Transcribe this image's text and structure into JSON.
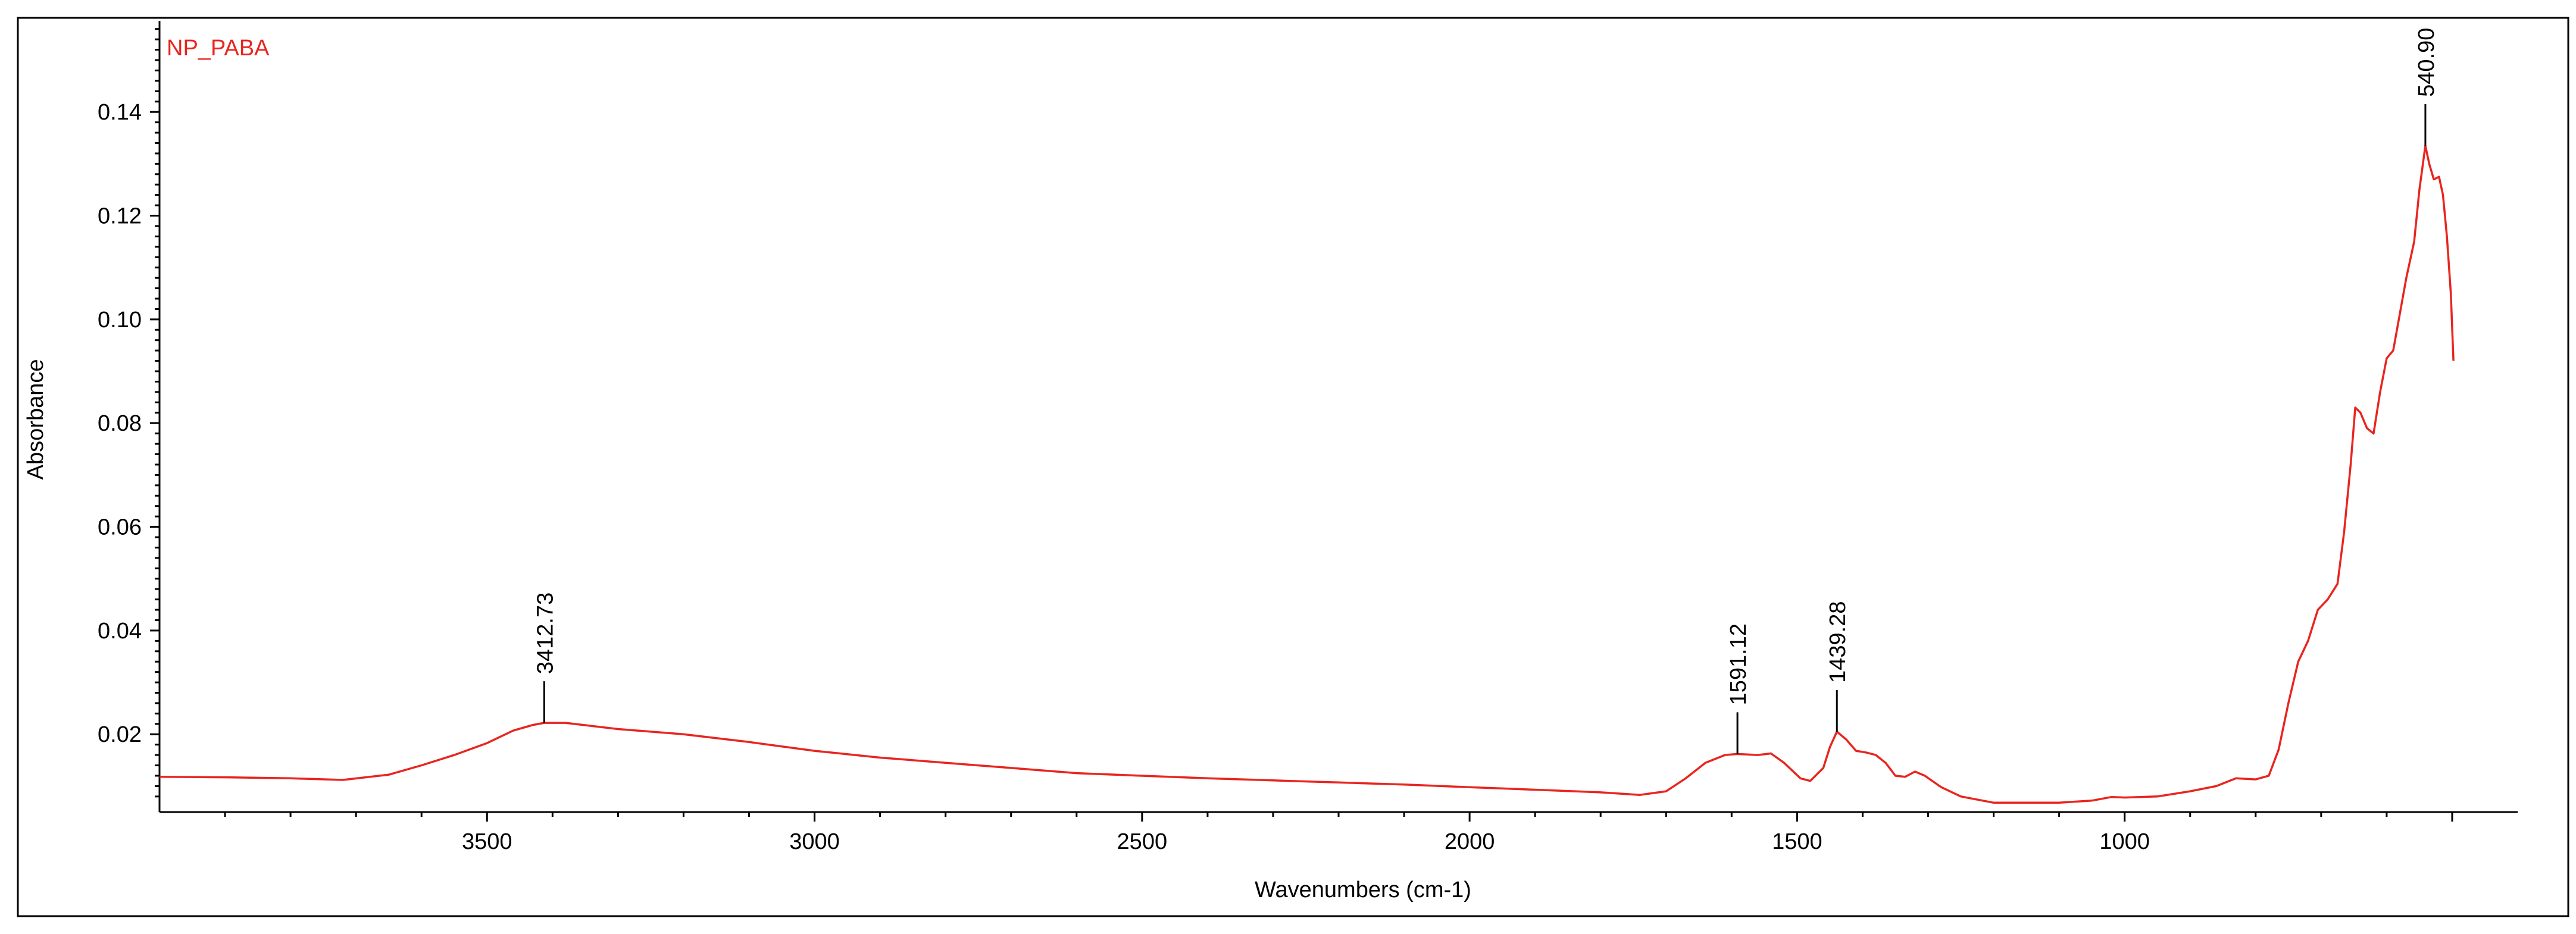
{
  "chart_data": {
    "type": "line",
    "title": "NP_PABA",
    "xlabel": "Wavenumbers (cm-1)",
    "ylabel": "Absorbance",
    "xlim": [
      4000,
      400
    ],
    "x_reversed": true,
    "ylim": [
      0.005,
      0.157
    ],
    "grid": false,
    "legend": "none",
    "x_ticks": [
      3500,
      3000,
      2500,
      2000,
      1500,
      1000
    ],
    "y_ticks": [
      0.02,
      0.04,
      0.06,
      0.08,
      0.1,
      0.12,
      0.14
    ],
    "y_tick_labels": [
      "0.02",
      "0.04",
      "0.06",
      "0.08",
      "0.10",
      "0.12",
      "0.14"
    ],
    "line_color": "#e8251f",
    "peak_annotations": [
      {
        "label": "3412.73",
        "x": 3412.73,
        "y": 0.0222
      },
      {
        "label": "1591.12",
        "x": 1591.12,
        "y": 0.0162
      },
      {
        "label": "1439.28",
        "x": 1439.28,
        "y": 0.0205
      },
      {
        "label": "540.90",
        "x": 540.9,
        "y": 0.1335
      }
    ],
    "series": [
      {
        "values": [
          [
            4000,
            0.0118
          ],
          [
            3900,
            0.0117
          ],
          [
            3800,
            0.0115
          ],
          [
            3720,
            0.0112
          ],
          [
            3650,
            0.0122
          ],
          [
            3600,
            0.014
          ],
          [
            3550,
            0.016
          ],
          [
            3500,
            0.0183
          ],
          [
            3460,
            0.0207
          ],
          [
            3430,
            0.0218
          ],
          [
            3412.73,
            0.0222
          ],
          [
            3380,
            0.0222
          ],
          [
            3300,
            0.021
          ],
          [
            3200,
            0.02
          ],
          [
            3100,
            0.0185
          ],
          [
            3000,
            0.0168
          ],
          [
            2900,
            0.0155
          ],
          [
            2800,
            0.0145
          ],
          [
            2700,
            0.0135
          ],
          [
            2600,
            0.0125
          ],
          [
            2500,
            0.012
          ],
          [
            2400,
            0.0115
          ],
          [
            2300,
            0.0111
          ],
          [
            2200,
            0.0107
          ],
          [
            2100,
            0.0103
          ],
          [
            2000,
            0.0098
          ],
          [
            1900,
            0.0093
          ],
          [
            1800,
            0.0088
          ],
          [
            1740,
            0.0083
          ],
          [
            1700,
            0.009
          ],
          [
            1670,
            0.0115
          ],
          [
            1640,
            0.0145
          ],
          [
            1610,
            0.016
          ],
          [
            1591.12,
            0.0162
          ],
          [
            1560,
            0.016
          ],
          [
            1540,
            0.0163
          ],
          [
            1520,
            0.0145
          ],
          [
            1495,
            0.0115
          ],
          [
            1480,
            0.011
          ],
          [
            1460,
            0.0135
          ],
          [
            1450,
            0.0175
          ],
          [
            1439.28,
            0.0205
          ],
          [
            1425,
            0.019
          ],
          [
            1410,
            0.0168
          ],
          [
            1395,
            0.0165
          ],
          [
            1380,
            0.016
          ],
          [
            1365,
            0.0145
          ],
          [
            1350,
            0.012
          ],
          [
            1335,
            0.0118
          ],
          [
            1320,
            0.0128
          ],
          [
            1305,
            0.012
          ],
          [
            1280,
            0.0098
          ],
          [
            1250,
            0.008
          ],
          [
            1200,
            0.0068
          ],
          [
            1100,
            0.0068
          ],
          [
            1050,
            0.0072
          ],
          [
            1020,
            0.0079
          ],
          [
            1000,
            0.0078
          ],
          [
            950,
            0.008
          ],
          [
            900,
            0.009
          ],
          [
            860,
            0.01
          ],
          [
            830,
            0.0115
          ],
          [
            800,
            0.0113
          ],
          [
            780,
            0.012
          ],
          [
            765,
            0.017
          ],
          [
            750,
            0.026
          ],
          [
            735,
            0.034
          ],
          [
            720,
            0.038
          ],
          [
            705,
            0.044
          ],
          [
            690,
            0.046
          ],
          [
            675,
            0.049
          ],
          [
            665,
            0.059
          ],
          [
            655,
            0.072
          ],
          [
            648,
            0.083
          ],
          [
            640,
            0.082
          ],
          [
            630,
            0.079
          ],
          [
            620,
            0.078
          ],
          [
            610,
            0.086
          ],
          [
            600,
            0.0925
          ],
          [
            590,
            0.094
          ],
          [
            580,
            0.101
          ],
          [
            570,
            0.108
          ],
          [
            558,
            0.115
          ],
          [
            550,
            0.125
          ],
          [
            540.9,
            0.1335
          ],
          [
            535,
            0.13
          ],
          [
            528,
            0.127
          ],
          [
            520,
            0.1275
          ],
          [
            514,
            0.124
          ],
          [
            508,
            0.116
          ],
          [
            502,
            0.105
          ],
          [
            498,
            0.092
          ]
        ]
      }
    ]
  }
}
